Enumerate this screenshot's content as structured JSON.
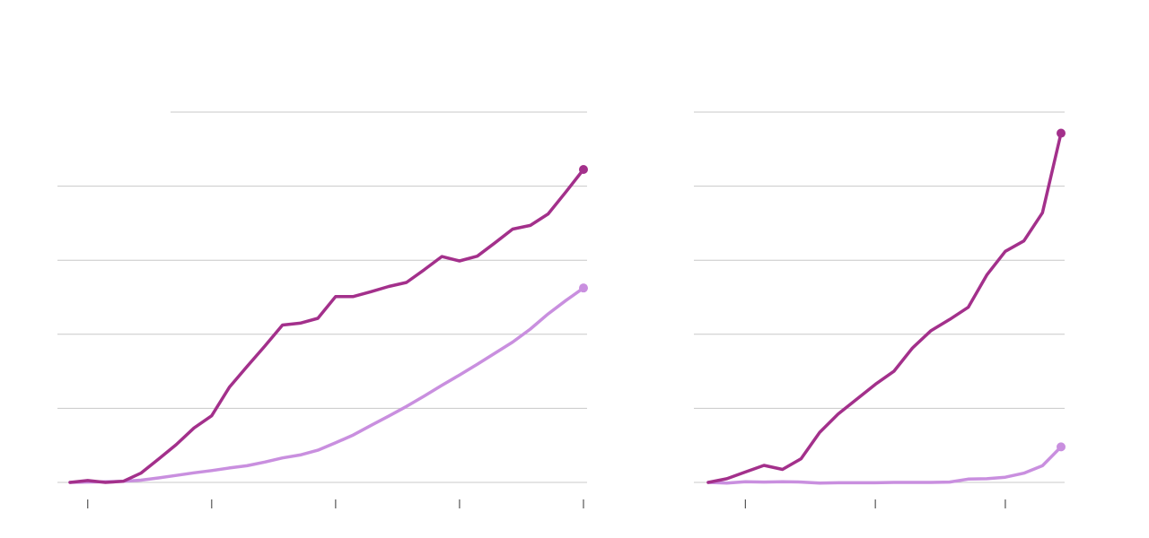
{
  "colors": {
    "primary_series": "#a3308b",
    "secondary_series": "#c98fdf",
    "grid": "#c8c8c8",
    "tick": "#555555"
  },
  "chart_data": [
    {
      "type": "line",
      "title": "",
      "xlabel": "",
      "ylabel": "",
      "grid": true,
      "ylim": [
        0,
        100
      ],
      "x": [
        0,
        1,
        2,
        3,
        4,
        5,
        6,
        7,
        8,
        9,
        10,
        11,
        12,
        13,
        14,
        15,
        16,
        17,
        18,
        19,
        20,
        21,
        22,
        23,
        24,
        25,
        26,
        27,
        28,
        29
      ],
      "xticks": [
        1,
        8,
        15,
        22,
        29
      ],
      "series": [
        {
          "color": "#a3308b",
          "values": [
            0,
            0.5,
            0,
            0.3,
            2.5,
            6.3,
            10.2,
            14.7,
            18,
            25.7,
            31.3,
            36.8,
            42.5,
            43,
            44.3,
            50.2,
            50.2,
            51.5,
            52.9,
            54,
            57.4,
            61,
            59.8,
            61.1,
            64.7,
            68.4,
            69.4,
            72.5,
            78.4,
            84.5
          ]
        },
        {
          "color": "#c98fdf",
          "values": [
            0,
            0.1,
            0.2,
            0.3,
            0.6,
            1.2,
            1.9,
            2.6,
            3.2,
            3.9,
            4.5,
            5.5,
            6.6,
            7.4,
            8.7,
            10.7,
            12.8,
            15.4,
            17.9,
            20.5,
            23.3,
            26.2,
            29,
            31.9,
            34.9,
            37.9,
            41.4,
            45.5,
            49.1,
            52.5
          ]
        }
      ]
    },
    {
      "type": "line",
      "title": "",
      "xlabel": "",
      "ylabel": "",
      "grid": true,
      "ylim": [
        0,
        100
      ],
      "x": [
        0,
        1,
        2,
        3,
        4,
        5,
        6,
        7,
        8,
        9,
        10,
        11,
        12,
        13,
        14,
        15,
        16,
        17,
        18,
        19
      ],
      "xticks": [
        2,
        9,
        16
      ],
      "series": [
        {
          "color": "#a3308b",
          "values": [
            0,
            1,
            2.8,
            4.6,
            3.5,
            6.4,
            13.5,
            18.5,
            22.5,
            26.5,
            30,
            36.3,
            41,
            44,
            47.3,
            56,
            62.4,
            65.2,
            72.8,
            94.3
          ]
        },
        {
          "color": "#c98fdf",
          "values": [
            0,
            -0.2,
            0.2,
            0.1,
            0.2,
            0.1,
            -0.2,
            -0.1,
            -0.1,
            -0.1,
            0,
            0,
            0,
            0.1,
            0.9,
            1,
            1.4,
            2.5,
            4.5,
            9.6
          ]
        }
      ]
    }
  ]
}
